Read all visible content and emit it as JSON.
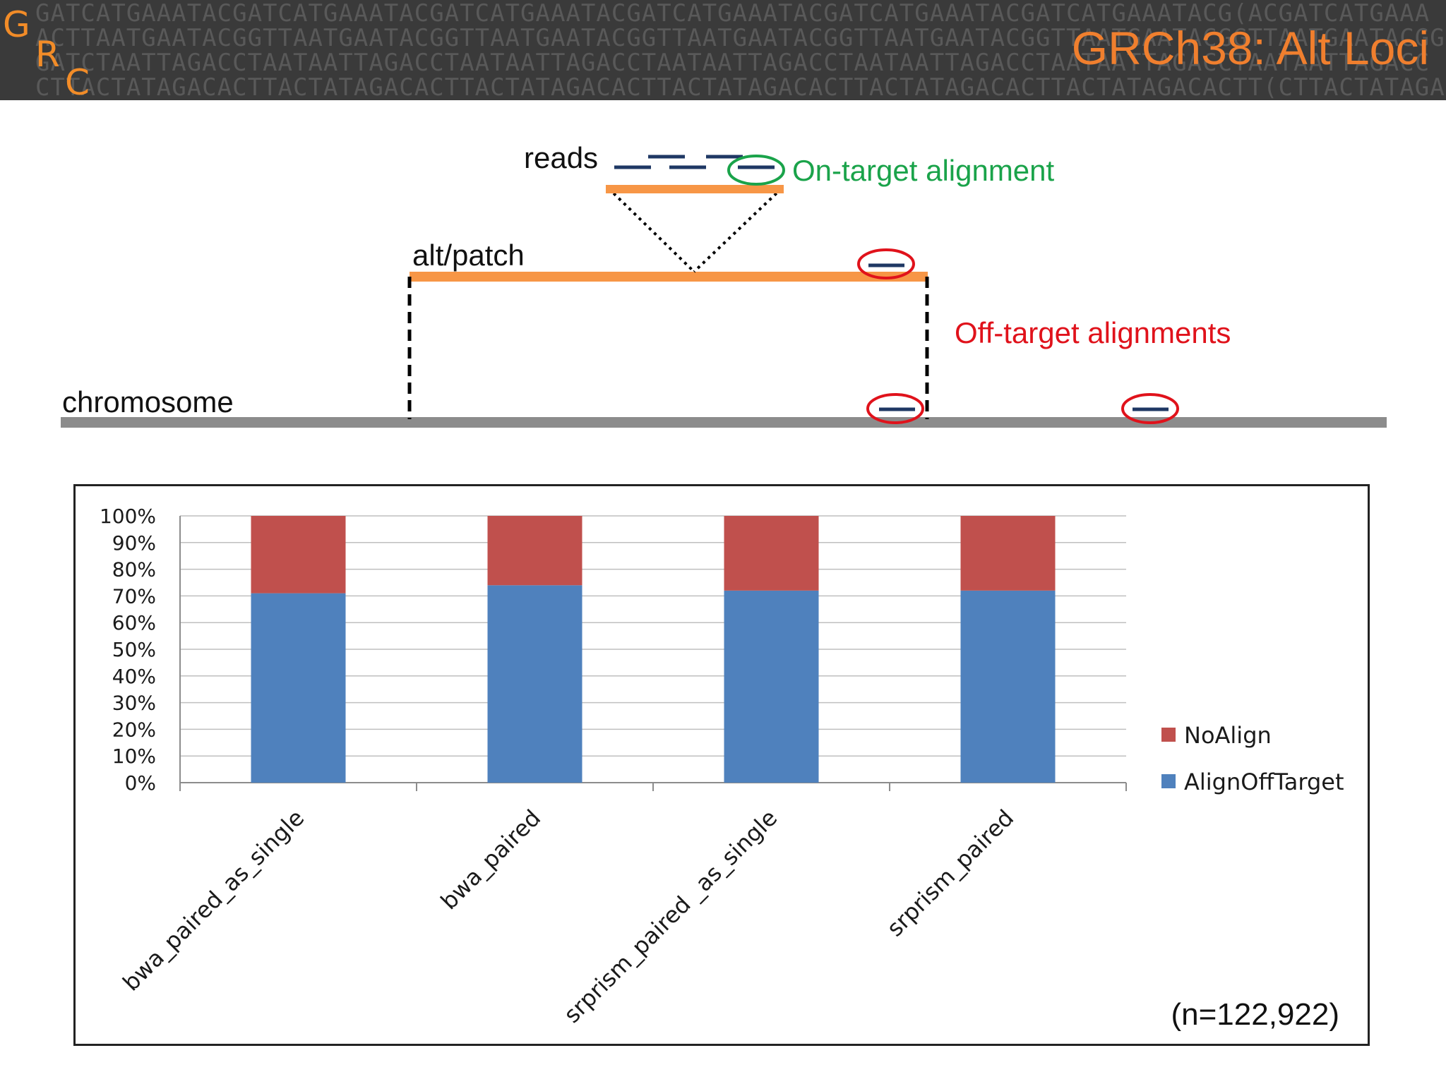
{
  "header": {
    "title": "GRCh38: Alt Loci",
    "logo_letters": [
      "G",
      "R",
      "C"
    ],
    "dna_rows": [
      "GATCATGAAATACGATCATGAAATACGATCATGAAATACGATCATGAAATACGATCATGAAATACGATCATGAAATACG(ACGATCATGAAA",
      "ACTTAATGAATACGGTTAATGAATACGGTTAATGAATACGGTTAATGAATACGGTTAATGAATACGGTTAATGAATACGGTTAATGAATACGG",
      "GATCTAATTAGACCTAATAATTAGACCTAATAATTAGACCTAATAATTAGACCTAATAATTAGACCTAATAATTAGACCTAATAATTAGACC",
      "CTTACTATAGACACTTACTATAGACACTTACTATAGACACTTACTATAGACACTTACTATAGACACTTACTATAGACACTT(CTTACTATAGACA"
    ]
  },
  "diagram": {
    "reads_label": "reads",
    "on_target_label": "On-target alignment",
    "alt_label": "alt/patch",
    "off_target_label": "Off-target alignments",
    "chromosome_label": "chromosome",
    "colors": {
      "orange": "#f79646",
      "read": "#1f3864",
      "green": "#1aa34a",
      "red": "#e0121b",
      "chromosome": "#8c8c8c"
    }
  },
  "chart_data": {
    "type": "bar",
    "stacked": true,
    "categories": [
      "bwa_paired_as_single",
      "bwa_paired",
      "srprism_paired _as_single",
      "srprism_paired"
    ],
    "series": [
      {
        "name": "AlignOffTarget",
        "color": "#4f81bd",
        "values": [
          71,
          74,
          72,
          72
        ]
      },
      {
        "name": "NoAlign",
        "color": "#c0504d",
        "values": [
          29,
          26,
          28,
          28
        ]
      }
    ],
    "y_ticks": [
      "0%",
      "10%",
      "20%",
      "30%",
      "40%",
      "50%",
      "60%",
      "70%",
      "80%",
      "90%",
      "100%"
    ],
    "ylim": [
      0,
      100
    ],
    "grid": true,
    "legend_position": "right",
    "annotation": "(n=122,922)"
  }
}
